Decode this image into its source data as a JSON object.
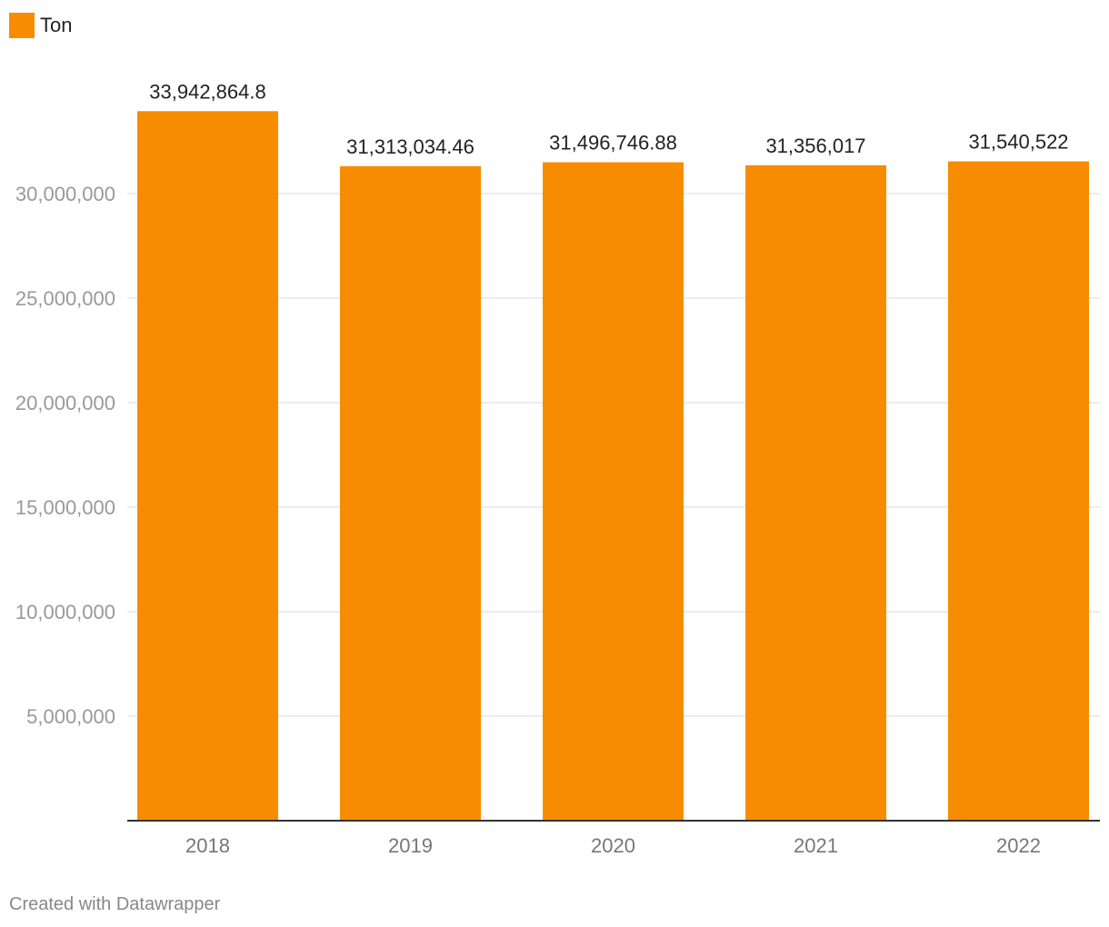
{
  "legend": {
    "label": "Ton"
  },
  "credit": "Created with Datawrapper",
  "colors": {
    "bar": "#f88c00",
    "grid": "#e6e6e6",
    "baseline": "#333333"
  },
  "chart_data": {
    "type": "bar",
    "categories": [
      "2018",
      "2019",
      "2020",
      "2021",
      "2022"
    ],
    "series": [
      {
        "name": "Ton",
        "values": [
          33942864.8,
          31313034.46,
          31496746.88,
          31356017,
          31540522
        ]
      }
    ],
    "value_labels": [
      "33,942,864.8",
      "31,313,034.46",
      "31,496,746.88",
      "31,356,017",
      "31,540,522"
    ],
    "yticks": [
      5000000,
      10000000,
      15000000,
      20000000,
      25000000,
      30000000
    ],
    "ytick_labels": [
      "5,000,000",
      "10,000,000",
      "15,000,000",
      "20,000,000",
      "25,000,000",
      "30,000,000"
    ],
    "ylim": [
      0,
      35000000
    ],
    "grid": true,
    "legend_position": "top-left"
  }
}
